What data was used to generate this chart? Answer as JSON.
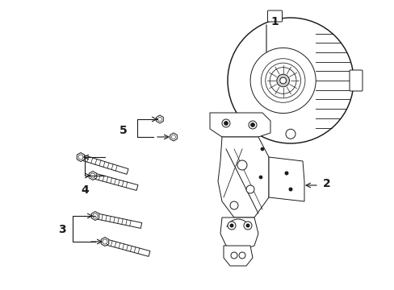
{
  "bg_color": "#ffffff",
  "line_color": "#1a1a1a",
  "fig_width": 4.89,
  "fig_height": 3.6,
  "dpi": 100,
  "label_fontsize": 10,
  "lw": 0.7
}
